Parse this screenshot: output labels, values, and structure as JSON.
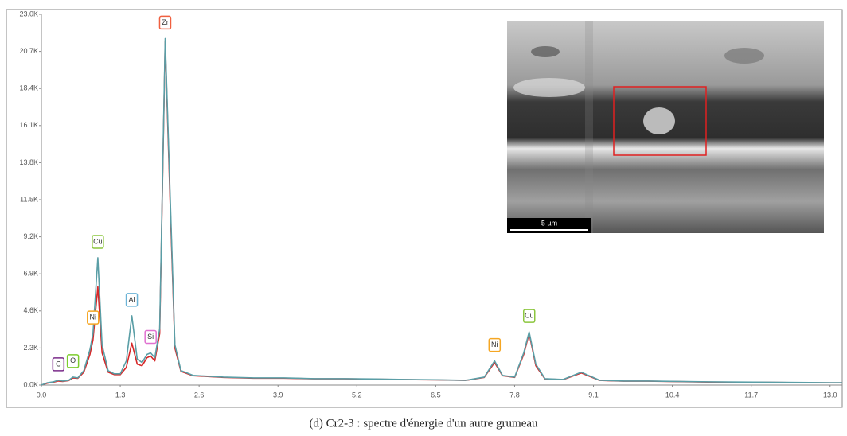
{
  "chart_data": {
    "type": "line",
    "x": [
      0,
      0.1,
      0.2,
      0.28,
      0.35,
      0.45,
      0.52,
      0.6,
      0.7,
      0.8,
      0.85,
      0.93,
      1.0,
      1.1,
      1.2,
      1.3,
      1.4,
      1.49,
      1.58,
      1.66,
      1.74,
      1.8,
      1.87,
      1.95,
      2.04,
      2.12,
      2.2,
      2.3,
      2.5,
      3.0,
      3.5,
      4.0,
      4.5,
      5.0,
      5.5,
      6.0,
      6.5,
      7.0,
      7.3,
      7.47,
      7.6,
      7.8,
      7.95,
      8.04,
      8.15,
      8.3,
      8.6,
      8.9,
      9.2,
      9.6,
      10.0,
      11.0,
      12.0,
      13.0,
      13.2
    ],
    "series": [
      {
        "color": "#d62728",
        "values": [
          0,
          120,
          180,
          250,
          220,
          280,
          450,
          420,
          800,
          1900,
          2800,
          6100,
          2000,
          800,
          650,
          650,
          1100,
          2600,
          1300,
          1200,
          1700,
          1800,
          1500,
          3200,
          21300,
          11500,
          2300,
          850,
          580,
          480,
          430,
          430,
          390,
          390,
          370,
          340,
          320,
          290,
          480,
          1400,
          580,
          480,
          1900,
          3200,
          1200,
          380,
          340,
          750,
          290,
          240,
          240,
          190,
          170,
          140,
          140
        ]
      },
      {
        "color": "#5a9ea6",
        "values": [
          0,
          150,
          200,
          300,
          250,
          300,
          500,
          450,
          900,
          2200,
          3200,
          7900,
          2500,
          900,
          700,
          700,
          1500,
          4300,
          1600,
          1400,
          1900,
          2000,
          1700,
          3500,
          21500,
          12000,
          2500,
          900,
          600,
          500,
          450,
          450,
          400,
          400,
          380,
          350,
          330,
          300,
          500,
          1500,
          600,
          500,
          2000,
          3300,
          1300,
          400,
          350,
          800,
          300,
          250,
          250,
          200,
          180,
          150,
          150
        ]
      }
    ],
    "xlim": [
      0,
      13.2
    ],
    "ylim": [
      0,
      23000
    ],
    "xticks": [
      {
        "value": 0,
        "label": "0.0"
      },
      1.3,
      2.6,
      3.9,
      5.2,
      6.5,
      7.8,
      9.1,
      10.4,
      11.7,
      {
        "value": 13,
        "label": "13.0"
      }
    ],
    "yticks": [
      {
        "value": 0,
        "label": "0.0K"
      },
      {
        "value": 2300,
        "label": "2.3K"
      },
      {
        "value": 4600,
        "label": "4.6K"
      },
      {
        "value": 6900,
        "label": "6.9K"
      },
      {
        "value": 9200,
        "label": "9.2K"
      },
      {
        "value": 11500,
        "label": "11.5K"
      },
      {
        "value": 13800,
        "label": "13.8K"
      },
      {
        "value": 16100,
        "label": "16.1K"
      },
      {
        "value": 18400,
        "label": "18.4K"
      },
      {
        "value": 20700,
        "label": "20.7K"
      },
      {
        "value": 23000,
        "label": "23.0K"
      }
    ],
    "annotations": [
      {
        "text": "C",
        "x": 0.28,
        "color": "#7b2c8a"
      },
      {
        "text": "O",
        "x": 0.52,
        "color": "#7ccc2c"
      },
      {
        "text": "Ni",
        "x": 0.85,
        "color": "#f5a623"
      },
      {
        "text": "Cu",
        "x": 0.93,
        "color": "#8cc63f"
      },
      {
        "text": "Al",
        "x": 1.49,
        "color": "#6bb3d6"
      },
      {
        "text": "Si",
        "x": 1.8,
        "color": "#e070d0"
      },
      {
        "text": "Zr",
        "x": 2.04,
        "color": "#f06040"
      },
      {
        "text": "Ni",
        "x": 7.47,
        "color": "#f5a623"
      },
      {
        "text": "Cu",
        "x": 8.04,
        "color": "#8cc63f"
      }
    ],
    "inset": {
      "scale_bar": "5 µm"
    },
    "caption": "(d) Cr2-3 : spectre d'énergie d'un autre grumeau"
  }
}
